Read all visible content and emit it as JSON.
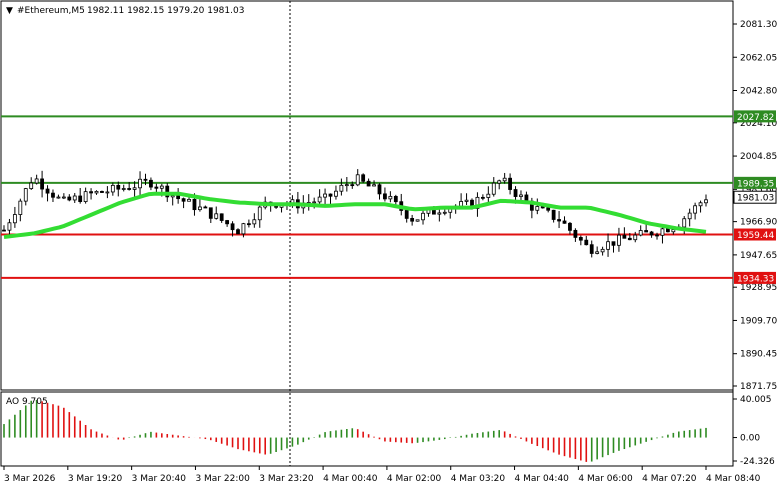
{
  "chart_header": {
    "symbol_timeframe": "#Ethereum,M5",
    "ohlc": "1982.11 1982.15 1979.20 1981.03",
    "dropdown_glyph": "▼"
  },
  "price_axis": {
    "ticks": [
      "2081.30",
      "2062.05",
      "2042.80",
      "2024.10",
      "2004.85",
      "1985.60",
      "1966.90",
      "1947.65",
      "1928.95",
      "1909.70",
      "1890.45",
      "1871.75"
    ]
  },
  "levels": [
    {
      "label": "2027.82",
      "value": 2027.82,
      "color": "#2e8b22"
    },
    {
      "label": "1989.35",
      "value": 1989.35,
      "color": "#2e8b22"
    },
    {
      "label": "1959.44",
      "value": 1959.44,
      "color": "#e01010"
    },
    {
      "label": "1934.33",
      "value": 1934.33,
      "color": "#e01010"
    }
  ],
  "current_price": {
    "label": "1981.03",
    "value": 1981.03
  },
  "indicator": {
    "name": "AO",
    "value": "9.705",
    "header": "AO 9.705",
    "ticks": [
      "40.005",
      "0.00",
      "-24.326"
    ],
    "up_color": "#2e8b22",
    "down_color": "#e01010"
  },
  "time_axis": {
    "labels": [
      "3 Mar 2026",
      "3 Mar 19:20",
      "3 Mar 20:40",
      "3 Mar 22:00",
      "3 Mar 23:20",
      "4 Mar 00:40",
      "4 Mar 02:00",
      "4 Mar 03:20",
      "4 Mar 04:40",
      "4 Mar 06:00",
      "4 Mar 07:20",
      "4 Mar 08:40"
    ]
  },
  "colors": {
    "moving_average": "#33dd33",
    "candles": "#000000"
  },
  "chart_data": {
    "type": "candlestick",
    "moving_average": [
      1958,
      1960,
      1964,
      1971,
      1978,
      1983,
      1983,
      1980,
      1978,
      1977,
      1977,
      1976,
      1977,
      1977,
      1974,
      1975,
      1975,
      1979,
      1978,
      1975,
      1975,
      1971,
      1966,
      1963,
      1961
    ],
    "close_series": [
      1962,
      1993,
      1978,
      1983,
      1986,
      1990,
      1980,
      1972,
      1962,
      1978,
      1977,
      1980,
      1992,
      1982,
      1968,
      1975,
      1977,
      1991,
      1976,
      1968,
      1951,
      1956,
      1960,
      1965,
      1981
    ],
    "ao_values": [
      14,
      40,
      32,
      8,
      -3,
      6,
      2,
      -2,
      -12,
      -18,
      -8,
      6,
      10,
      -4,
      -6,
      -2,
      4,
      8,
      -6,
      -18,
      -26,
      -14,
      -4,
      6,
      10
    ]
  }
}
